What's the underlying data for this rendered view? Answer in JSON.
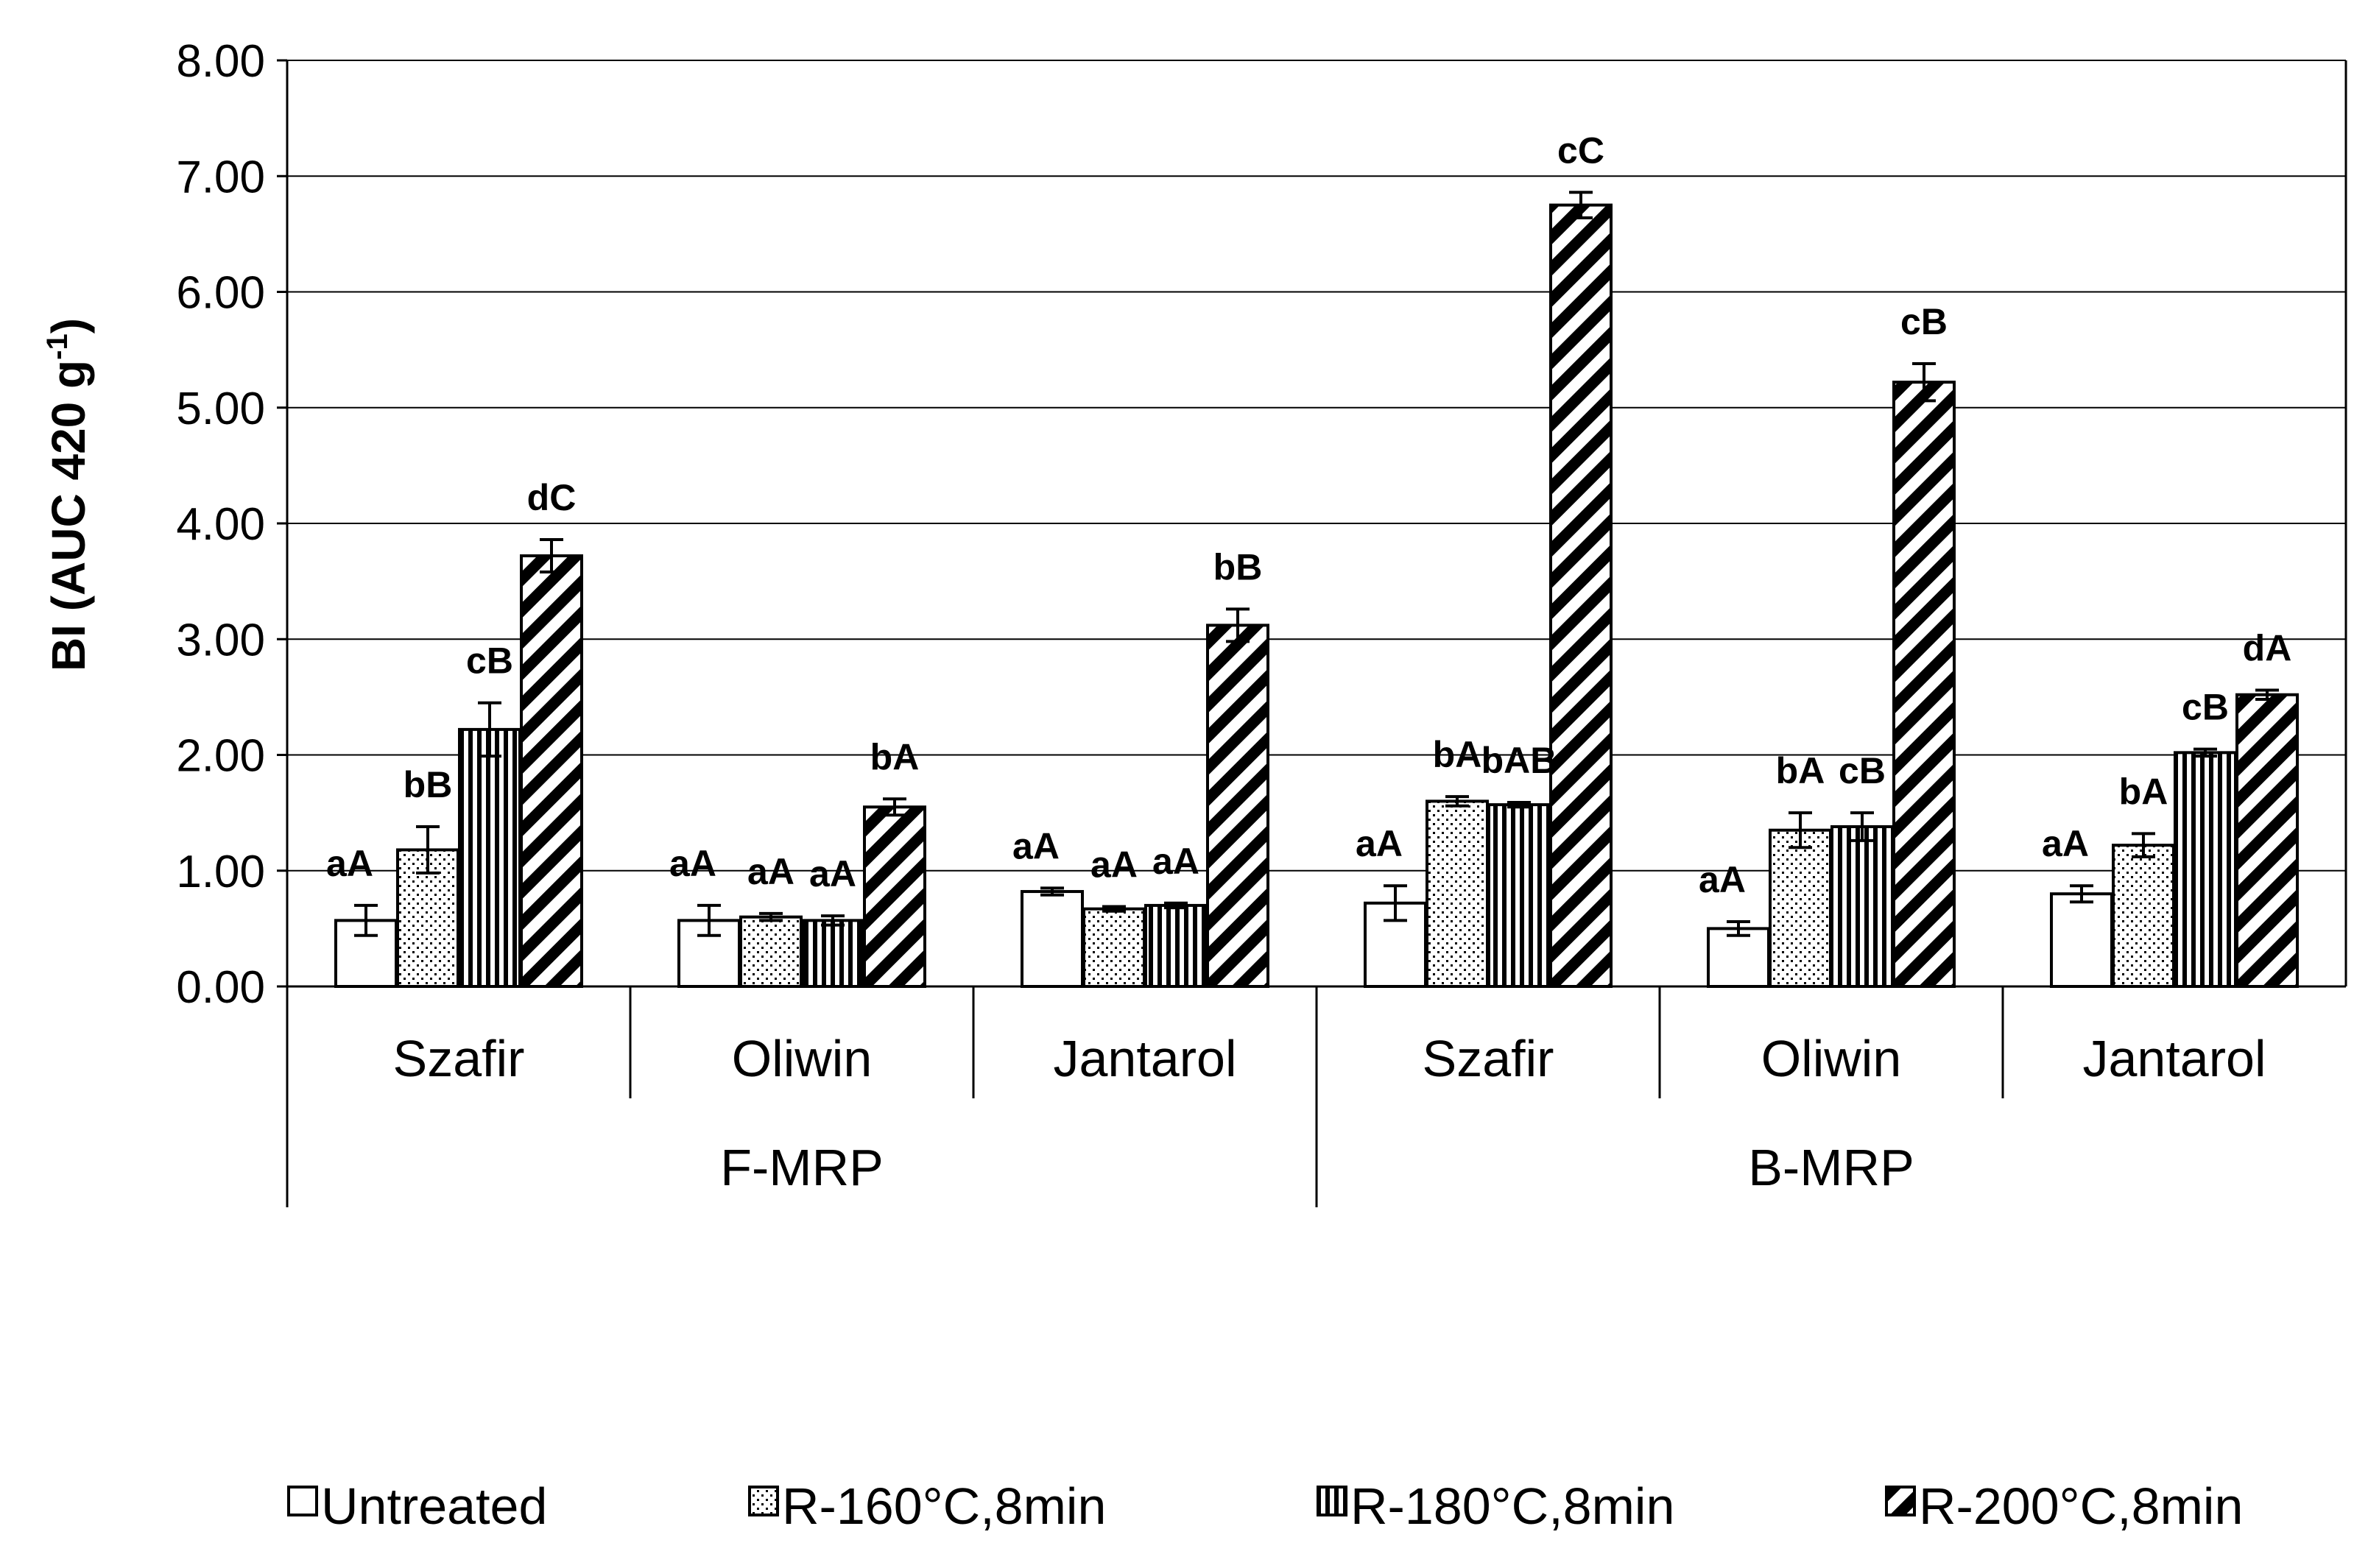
{
  "chart_data": {
    "type": "bar",
    "ylabel_main": "BI (AUC 420 g",
    "ylabel_sup": "-1",
    "ylabel_close": ")",
    "ylim": [
      0,
      8
    ],
    "yticks": [
      "0.00",
      "1.00",
      "2.00",
      "3.00",
      "4.00",
      "5.00",
      "6.00",
      "7.00",
      "8.00"
    ],
    "groups": [
      "F-MRP",
      "B-MRP"
    ],
    "categories": [
      "Szafir",
      "Oliwin",
      "Jantarol",
      "Szafir",
      "Oliwin",
      "Jantarol"
    ],
    "category_group": [
      0,
      0,
      0,
      1,
      1,
      1
    ],
    "series": [
      {
        "name": "Untreated",
        "pattern": "none",
        "values": [
          0.57,
          0.57,
          0.82,
          0.72,
          0.5,
          0.8
        ],
        "errors": [
          0.13,
          0.13,
          0.03,
          0.15,
          0.06,
          0.07
        ],
        "labels": [
          "aA",
          "aA",
          "aA",
          "aA",
          "aA",
          "aA"
        ]
      },
      {
        "name": "R-160°C,8min",
        "pattern": "dots",
        "values": [
          1.18,
          0.6,
          0.67,
          1.6,
          1.35,
          1.22
        ],
        "errors": [
          0.2,
          0.03,
          0.02,
          0.04,
          0.15,
          0.1
        ],
        "labels": [
          "bB",
          "aA",
          "aA",
          "bA",
          "bA",
          "bA"
        ]
      },
      {
        "name": "R-180°C,8min",
        "pattern": "vlines",
        "values": [
          2.22,
          0.57,
          0.7,
          1.57,
          1.38,
          2.02
        ],
        "errors": [
          0.23,
          0.04,
          0.02,
          0.02,
          0.12,
          0.03
        ],
        "labels": [
          "cB",
          "aA",
          "aA",
          "bAB",
          "cB",
          "cB"
        ]
      },
      {
        "name": "R-200°C,8min",
        "pattern": "diag",
        "values": [
          3.72,
          1.55,
          3.12,
          6.75,
          5.22,
          2.52
        ],
        "errors": [
          0.14,
          0.07,
          0.14,
          0.11,
          0.16,
          0.04
        ],
        "labels": [
          "dC",
          "bA",
          "bB",
          "cC",
          "cB",
          "dA"
        ]
      }
    ],
    "legend_position": "bottom"
  }
}
